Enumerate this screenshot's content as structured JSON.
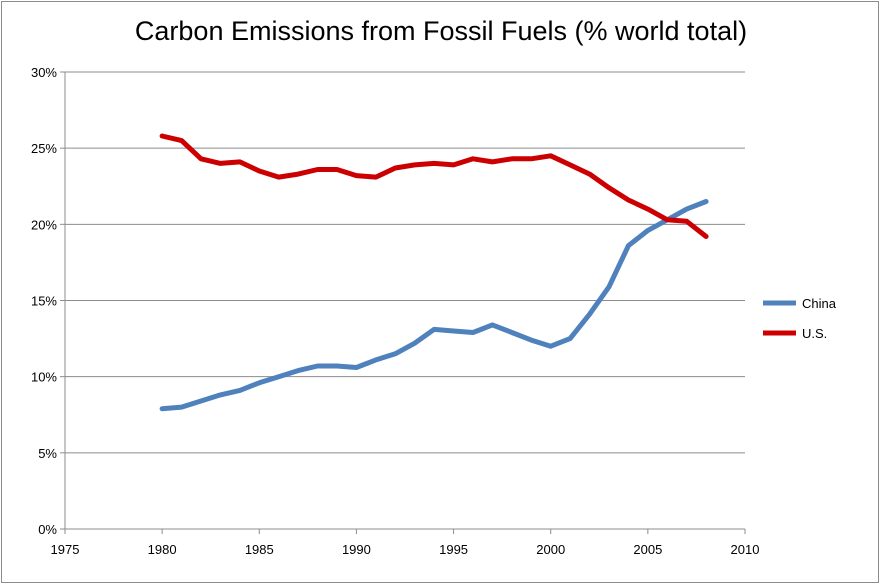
{
  "chart_data": {
    "type": "line",
    "title": "Carbon Emissions from Fossil Fuels (% world total)",
    "xlabel": "",
    "ylabel": "",
    "xlim": [
      1975,
      2010
    ],
    "ylim": [
      0,
      30
    ],
    "x_ticks": [
      1975,
      1980,
      1985,
      1990,
      1995,
      2000,
      2005,
      2010
    ],
    "y_ticks": [
      0,
      5,
      10,
      15,
      20,
      25,
      30
    ],
    "y_tick_labels": [
      "0%",
      "5%",
      "10%",
      "15%",
      "20%",
      "25%",
      "30%"
    ],
    "grid": "horizontal",
    "legend_position": "right",
    "x": [
      1980,
      1981,
      1982,
      1983,
      1984,
      1985,
      1986,
      1987,
      1988,
      1989,
      1990,
      1991,
      1992,
      1993,
      1994,
      1995,
      1996,
      1997,
      1998,
      1999,
      2000,
      2001,
      2002,
      2003,
      2004,
      2005,
      2006,
      2007,
      2008
    ],
    "series": [
      {
        "name": "China",
        "color": "#4f81bd",
        "values": [
          7.9,
          8.0,
          8.4,
          8.8,
          9.1,
          9.6,
          10.0,
          10.4,
          10.7,
          10.7,
          10.6,
          11.1,
          11.5,
          12.2,
          13.1,
          13.0,
          12.9,
          13.4,
          12.9,
          12.4,
          12.0,
          12.5,
          14.1,
          15.9,
          18.6,
          19.6,
          20.3,
          21.0,
          21.5
        ]
      },
      {
        "name": "U.S.",
        "color": "#cc0000",
        "values": [
          25.8,
          25.5,
          24.3,
          24.0,
          24.1,
          23.5,
          23.1,
          23.3,
          23.6,
          23.6,
          23.2,
          23.1,
          23.7,
          23.9,
          24.0,
          23.9,
          24.3,
          24.1,
          24.3,
          24.3,
          24.5,
          23.9,
          23.3,
          22.4,
          21.6,
          21.0,
          20.3,
          20.2,
          19.2
        ]
      }
    ]
  }
}
